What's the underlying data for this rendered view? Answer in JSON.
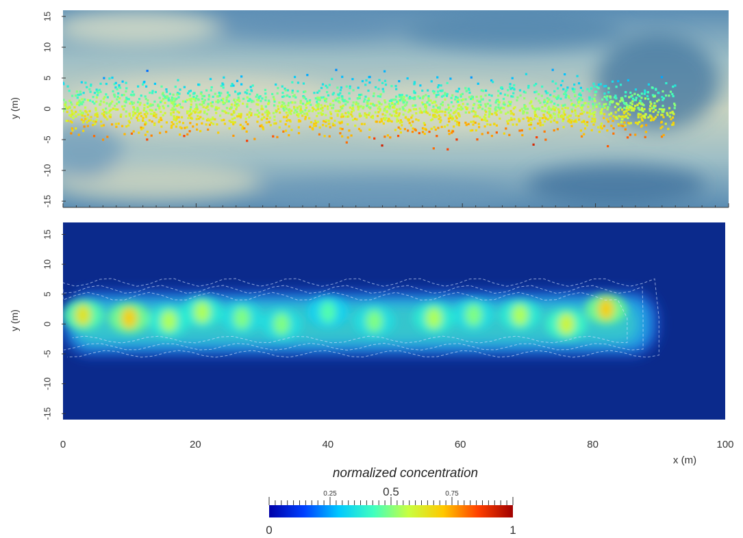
{
  "chart_data": [
    {
      "type": "scatter",
      "panel": "top",
      "xlabel": "",
      "ylabel": "y (m)",
      "xlim": [
        0,
        100
      ],
      "ylim": [
        -16,
        16
      ],
      "yticks": [
        15,
        10,
        5,
        0,
        -5,
        -10,
        -15
      ],
      "ytick_labels": [
        "15",
        "10",
        "5",
        "0",
        "-5",
        "-10",
        "-15"
      ],
      "background": "hydraulic-conductivity field (light beige / blue)",
      "particle_cloud": {
        "x_range": [
          0,
          92
        ],
        "y_spread": [
          -9,
          9
        ],
        "color_trend": "blue at y>3, green near y=0, orange/red at y<-3"
      }
    },
    {
      "type": "heatmap",
      "panel": "bottom",
      "xlabel": "x (m)",
      "ylabel": "y (m)",
      "xlim": [
        0,
        100
      ],
      "ylim": [
        -16,
        17
      ],
      "xticks": [
        0,
        20,
        40,
        60,
        80,
        100
      ],
      "xtick_labels": [
        "0",
        "20",
        "40",
        "60",
        "80",
        "100"
      ],
      "yticks": [
        15,
        10,
        5,
        0,
        -5,
        -10,
        -15
      ],
      "ytick_labels": [
        "15",
        "10",
        "5",
        "0",
        "-5",
        "-10",
        "-15"
      ],
      "plume": {
        "x_range": [
          0,
          90
        ],
        "y_range": [
          -5,
          7
        ]
      },
      "hotspots": [
        {
          "x": 3,
          "y": 1.5,
          "value": 0.65
        },
        {
          "x": 10,
          "y": 1.0,
          "value": 0.7
        },
        {
          "x": 16,
          "y": 0.5,
          "value": 0.55
        },
        {
          "x": 21,
          "y": 2.0,
          "value": 0.55
        },
        {
          "x": 27,
          "y": 1.0,
          "value": 0.5
        },
        {
          "x": 33,
          "y": 0.0,
          "value": 0.5
        },
        {
          "x": 40,
          "y": 2.0,
          "value": 0.45
        },
        {
          "x": 47,
          "y": 0.5,
          "value": 0.5
        },
        {
          "x": 56,
          "y": 1.0,
          "value": 0.55
        },
        {
          "x": 62,
          "y": 1.5,
          "value": 0.5
        },
        {
          "x": 69,
          "y": 1.5,
          "value": 0.55
        },
        {
          "x": 76,
          "y": 0.0,
          "value": 0.6
        },
        {
          "x": 82,
          "y": 2.5,
          "value": 0.7
        }
      ]
    }
  ],
  "colorbar": {
    "title": "normalized concentration",
    "min_label": "0",
    "max_label": "1",
    "mid_label": "0.5",
    "q1_label": "0.25",
    "q3_label": "0.75",
    "colors": [
      "#0000a8",
      "#0040ff",
      "#00c8ff",
      "#40ffbf",
      "#c8ff40",
      "#ffc800",
      "#ff4000",
      "#a00000"
    ]
  }
}
